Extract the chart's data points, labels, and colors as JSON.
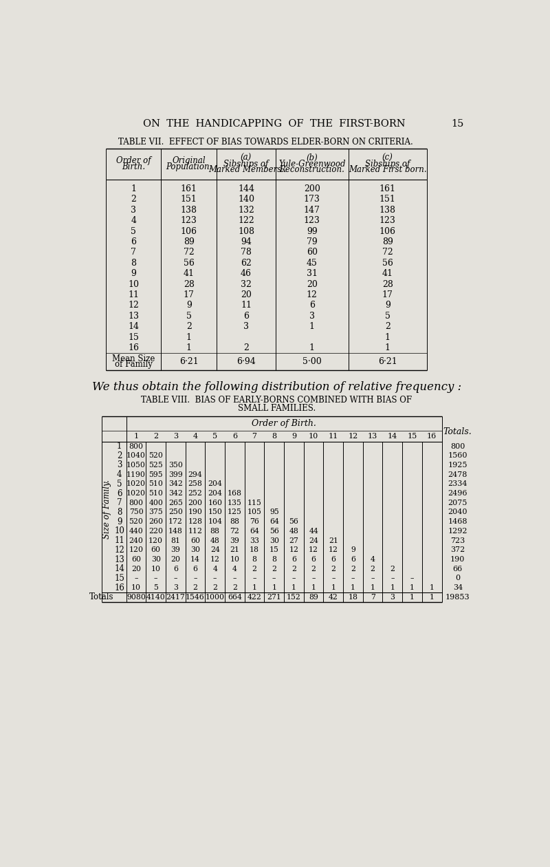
{
  "page_header": "ON  THE  HANDICAPPING  OF  THE  FIRST-BORN",
  "page_number": "15",
  "bg_color": "#e4e2dc",
  "table7_title": "TABLE VII.  EFFECT OF BIAS TOWARDS ELDER-BORN ON CRITERIA.",
  "table7_rows": [
    [
      "1",
      "161",
      "144",
      "200",
      "161"
    ],
    [
      "2",
      "151",
      "140",
      "173",
      "151"
    ],
    [
      "3",
      "138",
      "132",
      "147",
      "138"
    ],
    [
      "4",
      "123",
      "122",
      "123",
      "123"
    ],
    [
      "5",
      "106",
      "108",
      "99",
      "106"
    ],
    [
      "6",
      "89",
      "94",
      "79",
      "89"
    ],
    [
      "7",
      "72",
      "78",
      "60",
      "72"
    ],
    [
      "8",
      "56",
      "62",
      "45",
      "56"
    ],
    [
      "9",
      "41",
      "46",
      "31",
      "41"
    ],
    [
      "10",
      "28",
      "32",
      "20",
      "28"
    ],
    [
      "11",
      "17",
      "20",
      "12",
      "17"
    ],
    [
      "12",
      "9",
      "11",
      "6",
      "9"
    ],
    [
      "13",
      "5",
      "6",
      "3",
      "5"
    ],
    [
      "14",
      "2",
      "3",
      "1",
      "2"
    ],
    [
      "15",
      "1",
      "",
      "",
      "1"
    ],
    [
      "16",
      "1",
      "2",
      "1",
      "1"
    ]
  ],
  "table7_mean": [
    "6·21",
    "6·94",
    "5·00",
    "6·21"
  ],
  "prose_text": "We thus obtain the following distribution of relative frequency :",
  "table8_title1": "TABLE VIII.  BIAS OF EARLY-BORNS COMBINED WITH BIAS OF",
  "table8_title2": "SMALL FAMILIES.",
  "table8_data": [
    [
      "1",
      "800",
      "",
      "",
      "",
      "",
      "",
      "",
      "",
      "",
      "",
      "",
      "",
      "",
      "",
      "",
      "",
      "800"
    ],
    [
      "2",
      "1040",
      "520",
      "",
      "",
      "",
      "",
      "",
      "",
      "",
      "",
      "",
      "",
      "",
      "",
      "",
      "",
      "1560"
    ],
    [
      "3",
      "1050",
      "525",
      "350",
      "",
      "",
      "",
      "",
      "",
      "",
      "",
      "",
      "",
      "",
      "",
      "",
      "",
      "1925"
    ],
    [
      "4",
      "1190",
      "595",
      "399",
      "294",
      "",
      "",
      "",
      "",
      "",
      "",
      "",
      "",
      "",
      "",
      "",
      "",
      "2478"
    ],
    [
      "5",
      "1020",
      "510",
      "342",
      "258",
      "204",
      "",
      "",
      "",
      "",
      "",
      "",
      "",
      "",
      "",
      "",
      "",
      "2334"
    ],
    [
      "6",
      "1020",
      "510",
      "342",
      "252",
      "204",
      "168",
      "",
      "",
      "",
      "",
      "",
      "",
      "",
      "",
      "",
      "",
      "2496"
    ],
    [
      "7",
      "800",
      "400",
      "265",
      "200",
      "160",
      "135",
      "115",
      "",
      "",
      "",
      "",
      "",
      "",
      "",
      "",
      "",
      "2075"
    ],
    [
      "8",
      "750",
      "375",
      "250",
      "190",
      "150",
      "125",
      "105",
      "95",
      "",
      "",
      "",
      "",
      "",
      "",
      "",
      "",
      "2040"
    ],
    [
      "9",
      "520",
      "260",
      "172",
      "128",
      "104",
      "88",
      "76",
      "64",
      "56",
      "",
      "",
      "",
      "",
      "",
      "",
      "",
      "1468"
    ],
    [
      "10",
      "440",
      "220",
      "148",
      "112",
      "88",
      "72",
      "64",
      "56",
      "48",
      "44",
      "",
      "",
      "",
      "",
      "",
      "",
      "1292"
    ],
    [
      "11",
      "240",
      "120",
      "81",
      "60",
      "48",
      "39",
      "33",
      "30",
      "27",
      "24",
      "21",
      "",
      "",
      "",
      "",
      "",
      "723"
    ],
    [
      "12",
      "120",
      "60",
      "39",
      "30",
      "24",
      "21",
      "18",
      "15",
      "12",
      "12",
      "12",
      "9",
      "",
      "",
      "",
      "",
      "372"
    ],
    [
      "13",
      "60",
      "30",
      "20",
      "14",
      "12",
      "10",
      "8",
      "8",
      "6",
      "6",
      "6",
      "6",
      "4",
      "",
      "",
      "",
      "190"
    ],
    [
      "14",
      "20",
      "10",
      "6",
      "6",
      "4",
      "4",
      "2",
      "2",
      "2",
      "2",
      "2",
      "2",
      "2",
      "2",
      "",
      "",
      "66"
    ],
    [
      "15",
      "–",
      "–",
      "–",
      "–",
      "–",
      "–",
      "–",
      "–",
      "–",
      "–",
      "–",
      "–",
      "–",
      "–",
      "–",
      "",
      "0"
    ],
    [
      "16",
      "10",
      "5",
      "3",
      "2",
      "2",
      "2",
      "1",
      "1",
      "1",
      "1",
      "1",
      "1",
      "1",
      "1",
      "1",
      "1",
      "34"
    ]
  ],
  "table8_totals": [
    "9080",
    "4140",
    "2417",
    "1546",
    "1000",
    "664",
    "422",
    "271",
    "152",
    "89",
    "42",
    "18",
    "7",
    "3",
    "1",
    "1",
    "19853"
  ]
}
